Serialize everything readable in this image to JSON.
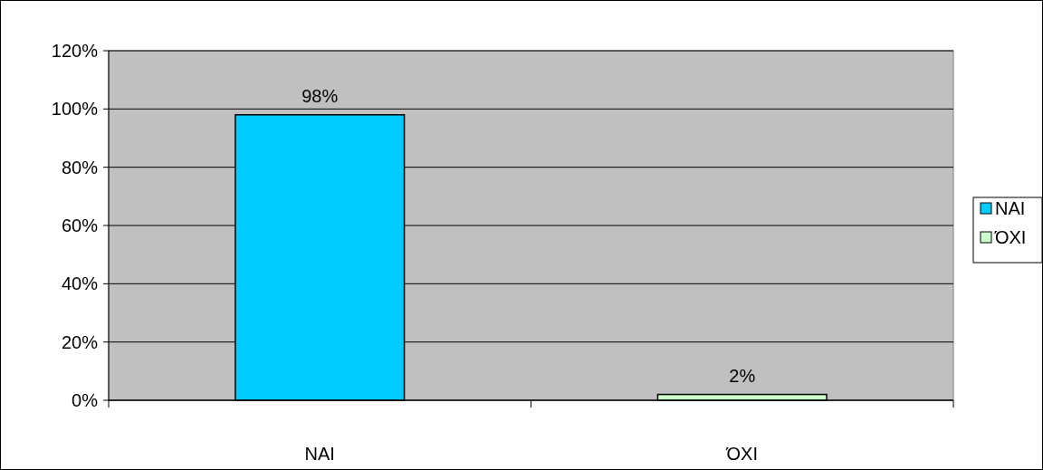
{
  "chart_data": {
    "type": "bar",
    "categories": [
      "ΝΑΙ",
      "ΌΧΙ"
    ],
    "series": [
      {
        "name": "ΝΑΙ",
        "color": "#00ccff",
        "values": [
          98,
          null
        ],
        "value_labels": [
          "98%",
          null
        ]
      },
      {
        "name": "ΌΧΙ",
        "color": "#ccffcc",
        "values": [
          null,
          2
        ],
        "value_labels": [
          null,
          "2%"
        ]
      }
    ],
    "ylim": [
      0,
      120
    ],
    "yticks": [
      {
        "value": 0,
        "label": "0%"
      },
      {
        "value": 20,
        "label": "20%"
      },
      {
        "value": 40,
        "label": "40%"
      },
      {
        "value": 60,
        "label": "60%"
      },
      {
        "value": 80,
        "label": "80%"
      },
      {
        "value": 100,
        "label": "100%"
      },
      {
        "value": 120,
        "label": "120%"
      }
    ],
    "grid": "y",
    "legend": "right"
  }
}
